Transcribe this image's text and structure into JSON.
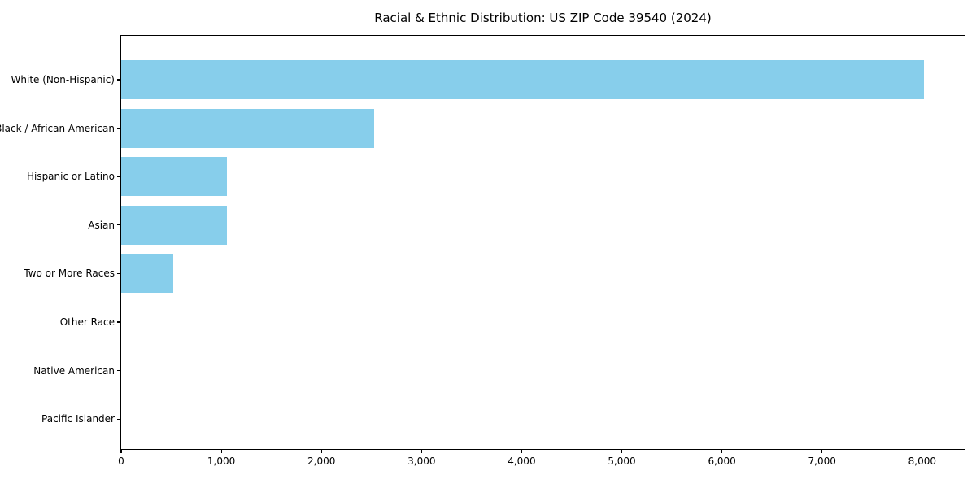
{
  "chart_data": {
    "type": "bar",
    "orientation": "horizontal",
    "title": "Racial & Ethnic Distribution: US ZIP Code 39540 (2024)",
    "categories": [
      "White (Non-Hispanic)",
      "Black / African American",
      "Hispanic or Latino",
      "Asian",
      "Two or More Races",
      "Other Race",
      "Native American",
      "Pacific Islander"
    ],
    "values": [
      8020,
      2530,
      1060,
      1060,
      520,
      0,
      0,
      0
    ],
    "xlabel": "",
    "ylabel": "",
    "xlim": [
      0,
      8440
    ],
    "x_ticks": [
      0,
      1000,
      2000,
      3000,
      4000,
      5000,
      6000,
      7000,
      8000
    ],
    "x_tick_labels": [
      "0",
      "1,000",
      "2,000",
      "3,000",
      "4,000",
      "5,000",
      "6,000",
      "7,000",
      "8,000"
    ],
    "bar_color": "#87CEEB",
    "axis_color": "#000000",
    "grid": false,
    "legend": null
  }
}
